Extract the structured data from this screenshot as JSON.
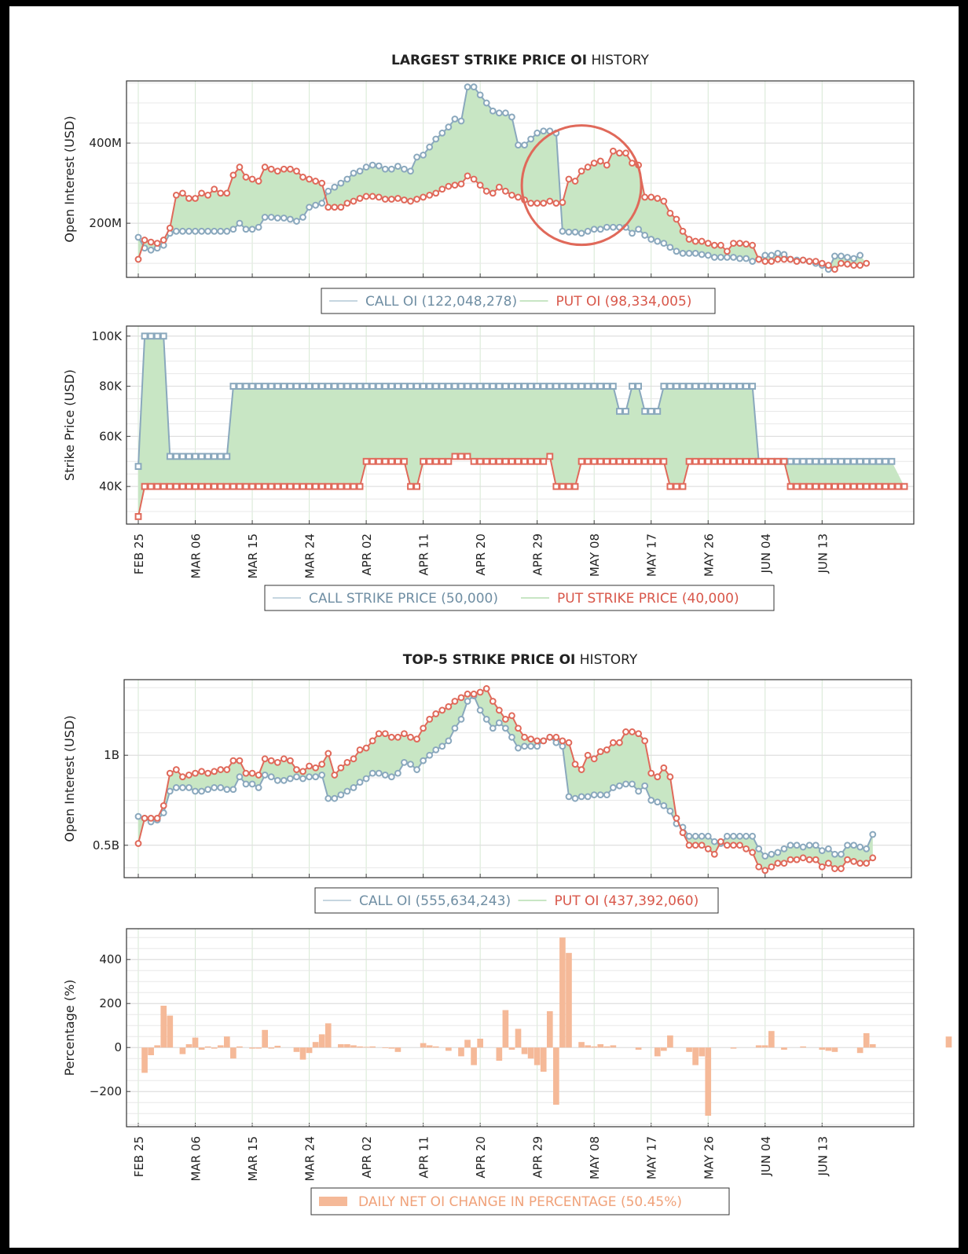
{
  "x_ticks": [
    "FEB 25",
    "MAR 06",
    "MAR 15",
    "MAR 24",
    "APR 02",
    "APR 11",
    "APR 20",
    "APR 29",
    "MAY 08",
    "MAY 17",
    "MAY 26",
    "JUN 04",
    "JUN 13"
  ],
  "colors": {
    "call": "#8aa8bd",
    "put": "#e0695a",
    "fill": "#c8e6c4",
    "bar": "#f5b998",
    "grid": "#e4e4e4",
    "annotation": "#e0695a"
  },
  "section1": {
    "title_bold": "LARGEST STRIKE PRICE OI",
    "title_rest": " HISTORY"
  },
  "section2": {
    "title_bold": "TOP-5 STRIKE PRICE OI",
    "title_rest": " HISTORY"
  },
  "chart_data": [
    {
      "id": "largest_oi",
      "type": "line",
      "x_start": "FEB 25",
      "ylabel": "Open Interest (USD)",
      "yticks": [
        {
          "value": 200,
          "label": "200M"
        },
        {
          "value": 400,
          "label": "400M"
        }
      ],
      "ylim": [
        65,
        555
      ],
      "fill_between": true,
      "annotation": "circle",
      "legend": [
        {
          "name": "CALL OI",
          "value": "(122,048,278)"
        },
        {
          "name": "PUT OI",
          "value": "(98,334,005)"
        }
      ],
      "series": [
        {
          "name": "CALL OI",
          "values": [
            165,
            138,
            133,
            138,
            145,
            175,
            180,
            180,
            180,
            180,
            180,
            180,
            180,
            180,
            180,
            185,
            200,
            185,
            185,
            190,
            215,
            215,
            213,
            213,
            210,
            205,
            215,
            240,
            245,
            250,
            280,
            290,
            300,
            310,
            325,
            330,
            340,
            345,
            343,
            335,
            335,
            342,
            335,
            330,
            365,
            370,
            390,
            410,
            425,
            440,
            460,
            455,
            540,
            540,
            520,
            500,
            480,
            475,
            475,
            465,
            395,
            395,
            410,
            425,
            430,
            430,
            425,
            180,
            178,
            178,
            175,
            180,
            185,
            185,
            190,
            190,
            190,
            190,
            175,
            185,
            170,
            160,
            155,
            150,
            140,
            130,
            125,
            125,
            125,
            122,
            120,
            115,
            115,
            115,
            115,
            112,
            112,
            105,
            110,
            120,
            120,
            125,
            122,
            110,
            108,
            108,
            105,
            100,
            95,
            85,
            118,
            118,
            115,
            112,
            120
          ]
        },
        {
          "name": "PUT OI",
          "values": [
            110,
            158,
            153,
            150,
            158,
            188,
            270,
            275,
            262,
            262,
            275,
            270,
            285,
            275,
            275,
            320,
            340,
            315,
            310,
            305,
            340,
            335,
            330,
            335,
            335,
            330,
            315,
            310,
            305,
            300,
            240,
            240,
            240,
            250,
            255,
            262,
            267,
            267,
            265,
            260,
            260,
            262,
            258,
            255,
            260,
            265,
            270,
            275,
            285,
            292,
            295,
            298,
            318,
            310,
            295,
            280,
            275,
            290,
            280,
            270,
            265,
            258,
            250,
            250,
            250,
            255,
            250,
            252,
            310,
            305,
            330,
            340,
            350,
            355,
            345,
            380,
            375,
            375,
            350,
            345,
            265,
            265,
            262,
            255,
            225,
            210,
            180,
            160,
            155,
            155,
            150,
            145,
            145,
            130,
            150,
            150,
            148,
            145,
            110,
            105,
            105,
            110,
            110,
            110,
            105,
            108,
            105,
            105,
            100,
            95,
            85,
            100,
            98,
            95,
            95,
            100
          ]
        }
      ]
    },
    {
      "id": "largest_strike",
      "type": "line",
      "x_start": "FEB 25",
      "ylabel": "Strike Price (USD)",
      "yticks": [
        {
          "value": 40000,
          "label": "40K"
        },
        {
          "value": 60000,
          "label": "60K"
        },
        {
          "value": 80000,
          "label": "80K"
        },
        {
          "value": 100000,
          "label": "100K"
        }
      ],
      "ylim": [
        25000,
        104000
      ],
      "fill_between": true,
      "legend": [
        {
          "name": "CALL STRIKE PRICE",
          "value": "(50,000)"
        },
        {
          "name": "PUT STRIKE PRICE",
          "value": "(40,000)"
        }
      ],
      "series": [
        {
          "name": "CALL STRIKE PRICE",
          "values": [
            48000,
            100000,
            100000,
            100000,
            100000,
            52000,
            52000,
            52000,
            52000,
            52000,
            52000,
            52000,
            52000,
            52000,
            52000,
            80000,
            80000,
            80000,
            80000,
            80000,
            80000,
            80000,
            80000,
            80000,
            80000,
            80000,
            80000,
            80000,
            80000,
            80000,
            80000,
            80000,
            80000,
            80000,
            80000,
            80000,
            80000,
            80000,
            80000,
            80000,
            80000,
            80000,
            80000,
            80000,
            80000,
            80000,
            80000,
            80000,
            80000,
            80000,
            80000,
            80000,
            80000,
            80000,
            80000,
            80000,
            80000,
            80000,
            80000,
            80000,
            80000,
            80000,
            80000,
            80000,
            80000,
            80000,
            80000,
            80000,
            80000,
            80000,
            80000,
            80000,
            80000,
            80000,
            80000,
            80000,
            70000,
            70000,
            80000,
            80000,
            70000,
            70000,
            70000,
            80000,
            80000,
            80000,
            80000,
            80000,
            80000,
            80000,
            80000,
            80000,
            80000,
            80000,
            80000,
            80000,
            80000,
            80000,
            50000,
            50000,
            50000,
            50000,
            50000,
            50000,
            50000,
            50000,
            50000,
            50000,
            50000,
            50000,
            50000,
            50000,
            50000,
            50000,
            50000,
            50000,
            50000,
            50000,
            50000,
            50000
          ]
        },
        {
          "name": "PUT STRIKE PRICE",
          "values": [
            28000,
            40000,
            40000,
            40000,
            40000,
            40000,
            40000,
            40000,
            40000,
            40000,
            40000,
            40000,
            40000,
            40000,
            40000,
            40000,
            40000,
            40000,
            40000,
            40000,
            40000,
            40000,
            40000,
            40000,
            40000,
            40000,
            40000,
            40000,
            40000,
            40000,
            40000,
            40000,
            40000,
            40000,
            40000,
            40000,
            50000,
            50000,
            50000,
            50000,
            50000,
            50000,
            50000,
            40000,
            40000,
            50000,
            50000,
            50000,
            50000,
            50000,
            52000,
            52000,
            52000,
            50000,
            50000,
            50000,
            50000,
            50000,
            50000,
            50000,
            50000,
            50000,
            50000,
            50000,
            50000,
            52000,
            40000,
            40000,
            40000,
            40000,
            50000,
            50000,
            50000,
            50000,
            50000,
            50000,
            50000,
            50000,
            50000,
            50000,
            50000,
            50000,
            50000,
            50000,
            40000,
            40000,
            40000,
            50000,
            50000,
            50000,
            50000,
            50000,
            50000,
            50000,
            50000,
            50000,
            50000,
            50000,
            50000,
            50000,
            50000,
            50000,
            50000,
            40000,
            40000,
            40000,
            40000,
            40000,
            40000,
            40000,
            40000,
            40000,
            40000,
            40000,
            40000,
            40000,
            40000,
            40000,
            40000,
            40000,
            40000,
            40000
          ]
        }
      ]
    },
    {
      "id": "top5_oi",
      "type": "line",
      "x_start": "FEB 25",
      "ylabel": "Open Interest (USD)",
      "yticks": [
        {
          "value": 0.5,
          "label": "0.5B"
        },
        {
          "value": 1.0,
          "label": "1B"
        }
      ],
      "ylim": [
        0.32,
        1.42
      ],
      "fill_between": true,
      "legend": [
        {
          "name": "CALL OI",
          "value": "(555,634,243)"
        },
        {
          "name": "PUT OI",
          "value": "(437,392,060)"
        }
      ],
      "series": [
        {
          "name": "CALL OI",
          "values": [
            0.66,
            0.65,
            0.63,
            0.64,
            0.68,
            0.8,
            0.82,
            0.82,
            0.82,
            0.8,
            0.8,
            0.81,
            0.82,
            0.82,
            0.81,
            0.81,
            0.88,
            0.84,
            0.84,
            0.82,
            0.89,
            0.88,
            0.86,
            0.86,
            0.87,
            0.88,
            0.87,
            0.88,
            0.88,
            0.89,
            0.76,
            0.76,
            0.78,
            0.8,
            0.82,
            0.85,
            0.87,
            0.9,
            0.9,
            0.89,
            0.88,
            0.9,
            0.96,
            0.95,
            0.92,
            0.97,
            1.0,
            1.03,
            1.05,
            1.08,
            1.15,
            1.2,
            1.3,
            1.33,
            1.25,
            1.2,
            1.15,
            1.18,
            1.15,
            1.1,
            1.04,
            1.05,
            1.05,
            1.05,
            1.08,
            1.1,
            1.07,
            1.05,
            0.77,
            0.76,
            0.77,
            0.77,
            0.78,
            0.78,
            0.78,
            0.82,
            0.83,
            0.84,
            0.84,
            0.8,
            0.83,
            0.75,
            0.74,
            0.72,
            0.69,
            0.62,
            0.6,
            0.55,
            0.55,
            0.55,
            0.55,
            0.52,
            0.51,
            0.55,
            0.55,
            0.55,
            0.55,
            0.55,
            0.48,
            0.44,
            0.45,
            0.46,
            0.48,
            0.5,
            0.5,
            0.49,
            0.5,
            0.5,
            0.47,
            0.48,
            0.45,
            0.45,
            0.5,
            0.5,
            0.49,
            0.48,
            0.56
          ]
        },
        {
          "name": "PUT OI",
          "values": [
            0.51,
            0.65,
            0.65,
            0.65,
            0.72,
            0.9,
            0.92,
            0.88,
            0.89,
            0.9,
            0.91,
            0.9,
            0.91,
            0.92,
            0.92,
            0.97,
            0.97,
            0.9,
            0.9,
            0.89,
            0.98,
            0.97,
            0.96,
            0.98,
            0.97,
            0.92,
            0.91,
            0.94,
            0.93,
            0.95,
            1.01,
            0.89,
            0.93,
            0.96,
            0.98,
            1.03,
            1.04,
            1.08,
            1.12,
            1.12,
            1.1,
            1.1,
            1.12,
            1.1,
            1.09,
            1.15,
            1.2,
            1.23,
            1.25,
            1.27,
            1.3,
            1.32,
            1.34,
            1.34,
            1.35,
            1.37,
            1.3,
            1.25,
            1.2,
            1.22,
            1.15,
            1.1,
            1.09,
            1.08,
            1.08,
            1.1,
            1.1,
            1.08,
            1.07,
            0.95,
            0.92,
            1.0,
            0.98,
            1.02,
            1.03,
            1.07,
            1.07,
            1.13,
            1.13,
            1.12,
            1.08,
            0.9,
            0.88,
            0.93,
            0.88,
            0.65,
            0.57,
            0.5,
            0.5,
            0.5,
            0.48,
            0.45,
            0.52,
            0.5,
            0.5,
            0.5,
            0.48,
            0.46,
            0.38,
            0.36,
            0.38,
            0.4,
            0.4,
            0.42,
            0.42,
            0.43,
            0.42,
            0.42,
            0.38,
            0.4,
            0.37,
            0.37,
            0.42,
            0.41,
            0.4,
            0.4,
            0.43
          ]
        }
      ]
    },
    {
      "id": "daily_change",
      "type": "bar",
      "x_start": "FEB 25",
      "ylabel": "Percentage (%)",
      "yticks": [
        {
          "value": -200,
          "label": "−200"
        },
        {
          "value": 0,
          "label": "0"
        },
        {
          "value": 200,
          "label": "200"
        },
        {
          "value": 400,
          "label": "400"
        }
      ],
      "ylim": [
        -360,
        540
      ],
      "legend": [
        {
          "name": "DAILY NET OI CHANGE IN PERCENTAGE",
          "value": "(50.45%)"
        }
      ],
      "series": [
        {
          "name": "DAILY NET OI CHANGE IN PERCENTAGE",
          "values": [
            0,
            -115,
            -35,
            10,
            190,
            145,
            0,
            -30,
            15,
            45,
            -10,
            5,
            -5,
            10,
            50,
            -50,
            5,
            0,
            -5,
            -5,
            80,
            -5,
            8,
            0,
            0,
            -20,
            -55,
            -25,
            25,
            60,
            110,
            0,
            15,
            15,
            10,
            5,
            3,
            5,
            0,
            -3,
            -5,
            -20,
            0,
            0,
            0,
            20,
            10,
            5,
            0,
            -15,
            0,
            -40,
            35,
            -80,
            40,
            0,
            0,
            -60,
            170,
            -10,
            85,
            -30,
            -50,
            -80,
            -110,
            165,
            -260,
            500,
            430,
            0,
            25,
            10,
            5,
            15,
            5,
            10,
            0,
            0,
            0,
            -10,
            0,
            0,
            -40,
            -15,
            55,
            0,
            0,
            -20,
            -80,
            -40,
            -310,
            0,
            0,
            0,
            -5,
            0,
            0,
            0,
            10,
            10,
            75,
            0,
            -10,
            0,
            0,
            5,
            0,
            0,
            -10,
            -15,
            -20,
            0,
            0,
            0,
            -25,
            65,
            15,
            0,
            0,
            0,
            0,
            0,
            0,
            0,
            0,
            0,
            0,
            0,
            50
          ]
        }
      ]
    }
  ]
}
